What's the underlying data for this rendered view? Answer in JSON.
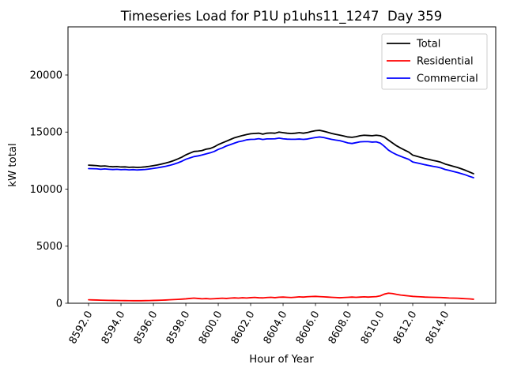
{
  "figure": {
    "background": "#ffffff",
    "frame_color": "#000000",
    "legend_border_color": "#cccccc"
  },
  "chart_data": {
    "type": "line",
    "title": "Timeseries Load for P1U p1uhs11_1247  Day 359",
    "xlabel": "Hour of Year",
    "ylabel": "kW total",
    "xlim": [
      8590.73,
      8617.12
    ],
    "ylim": [
      0,
      24220
    ],
    "grid": false,
    "legend_position": "upper right",
    "xticks": [
      8592,
      8594,
      8596,
      8598,
      8600,
      8602,
      8604,
      8606,
      8608,
      8610,
      8612,
      8614
    ],
    "xtick_labels": [
      "8592.0",
      "8594.0",
      "8596.0",
      "8598.0",
      "8600.0",
      "8602.0",
      "8604.0",
      "8606.0",
      "8608.0",
      "8610.0",
      "8612.0",
      "8614.0"
    ],
    "xtick_rotation_deg": 60,
    "yticks": [
      0,
      5000,
      10000,
      15000,
      20000
    ],
    "ytick_labels": [
      "0",
      "5000",
      "10000",
      "15000",
      "20000"
    ],
    "x_start": 8592.0,
    "x_step": 0.25,
    "series": [
      {
        "name": "Total",
        "color": "#000000",
        "values": [
          12100,
          12080,
          12060,
          12010,
          12030,
          11990,
          11960,
          11980,
          11940,
          11950,
          11910,
          11930,
          11900,
          11920,
          11950,
          12000,
          12060,
          12120,
          12200,
          12280,
          12380,
          12500,
          12640,
          12800,
          13000,
          13150,
          13300,
          13330,
          13380,
          13500,
          13560,
          13700,
          13900,
          14050,
          14200,
          14350,
          14500,
          14600,
          14700,
          14780,
          14850,
          14880,
          14900,
          14820,
          14900,
          14920,
          14900,
          15000,
          14950,
          14900,
          14870,
          14900,
          14950,
          14900,
          14960,
          15050,
          15120,
          15150,
          15080,
          14980,
          14880,
          14800,
          14730,
          14650,
          14570,
          14540,
          14590,
          14680,
          14720,
          14700,
          14680,
          14720,
          14680,
          14550,
          14300,
          14050,
          13800,
          13600,
          13420,
          13250,
          12980,
          12880,
          12780,
          12680,
          12600,
          12520,
          12450,
          12350,
          12200,
          12100,
          12000,
          11900,
          11780,
          11650,
          11500,
          11350
        ]
      },
      {
        "name": "Residential",
        "color": "#ff0000",
        "values": [
          300,
          290,
          280,
          270,
          260,
          250,
          245,
          240,
          235,
          230,
          225,
          222,
          220,
          222,
          228,
          235,
          245,
          255,
          268,
          282,
          300,
          320,
          340,
          360,
          385,
          420,
          450,
          420,
          390,
          410,
          380,
          400,
          420,
          440,
          420,
          450,
          470,
          450,
          480,
          460,
          490,
          510,
          480,
          470,
          500,
          520,
          490,
          530,
          540,
          520,
          500,
          530,
          560,
          540,
          570,
          590,
          600,
          580,
          560,
          540,
          520,
          500,
          480,
          500,
          520,
          540,
          520,
          540,
          560,
          540,
          560,
          580,
          650,
          800,
          880,
          850,
          780,
          720,
          680,
          640,
          600,
          580,
          560,
          540,
          530,
          520,
          510,
          500,
          480,
          460,
          450,
          440,
          420,
          400,
          380,
          350
        ]
      },
      {
        "name": "Commercial",
        "color": "#0000ff",
        "values": [
          11800,
          11790,
          11780,
          11740,
          11770,
          11740,
          11715,
          11740,
          11705,
          11720,
          11685,
          11708,
          11680,
          11698,
          11722,
          11765,
          11815,
          11865,
          11932,
          11998,
          12080,
          12180,
          12300,
          12440,
          12615,
          12730,
          12850,
          12910,
          12990,
          13090,
          13180,
          13300,
          13480,
          13610,
          13780,
          13900,
          14030,
          14150,
          14220,
          14320,
          14360,
          14370,
          14420,
          14350,
          14400,
          14400,
          14410,
          14470,
          14410,
          14380,
          14370,
          14370,
          14390,
          14360,
          14390,
          14460,
          14520,
          14570,
          14520,
          14440,
          14360,
          14300,
          14250,
          14150,
          14050,
          14000,
          14070,
          14140,
          14160,
          14160,
          14120,
          14140,
          14030,
          13750,
          13420,
          13200,
          13020,
          12880,
          12740,
          12610,
          12380,
          12300,
          12220,
          12140,
          12070,
          12000,
          11940,
          11850,
          11720,
          11640,
          11550,
          11460,
          11360,
          11250,
          11120,
          11000
        ]
      }
    ]
  }
}
